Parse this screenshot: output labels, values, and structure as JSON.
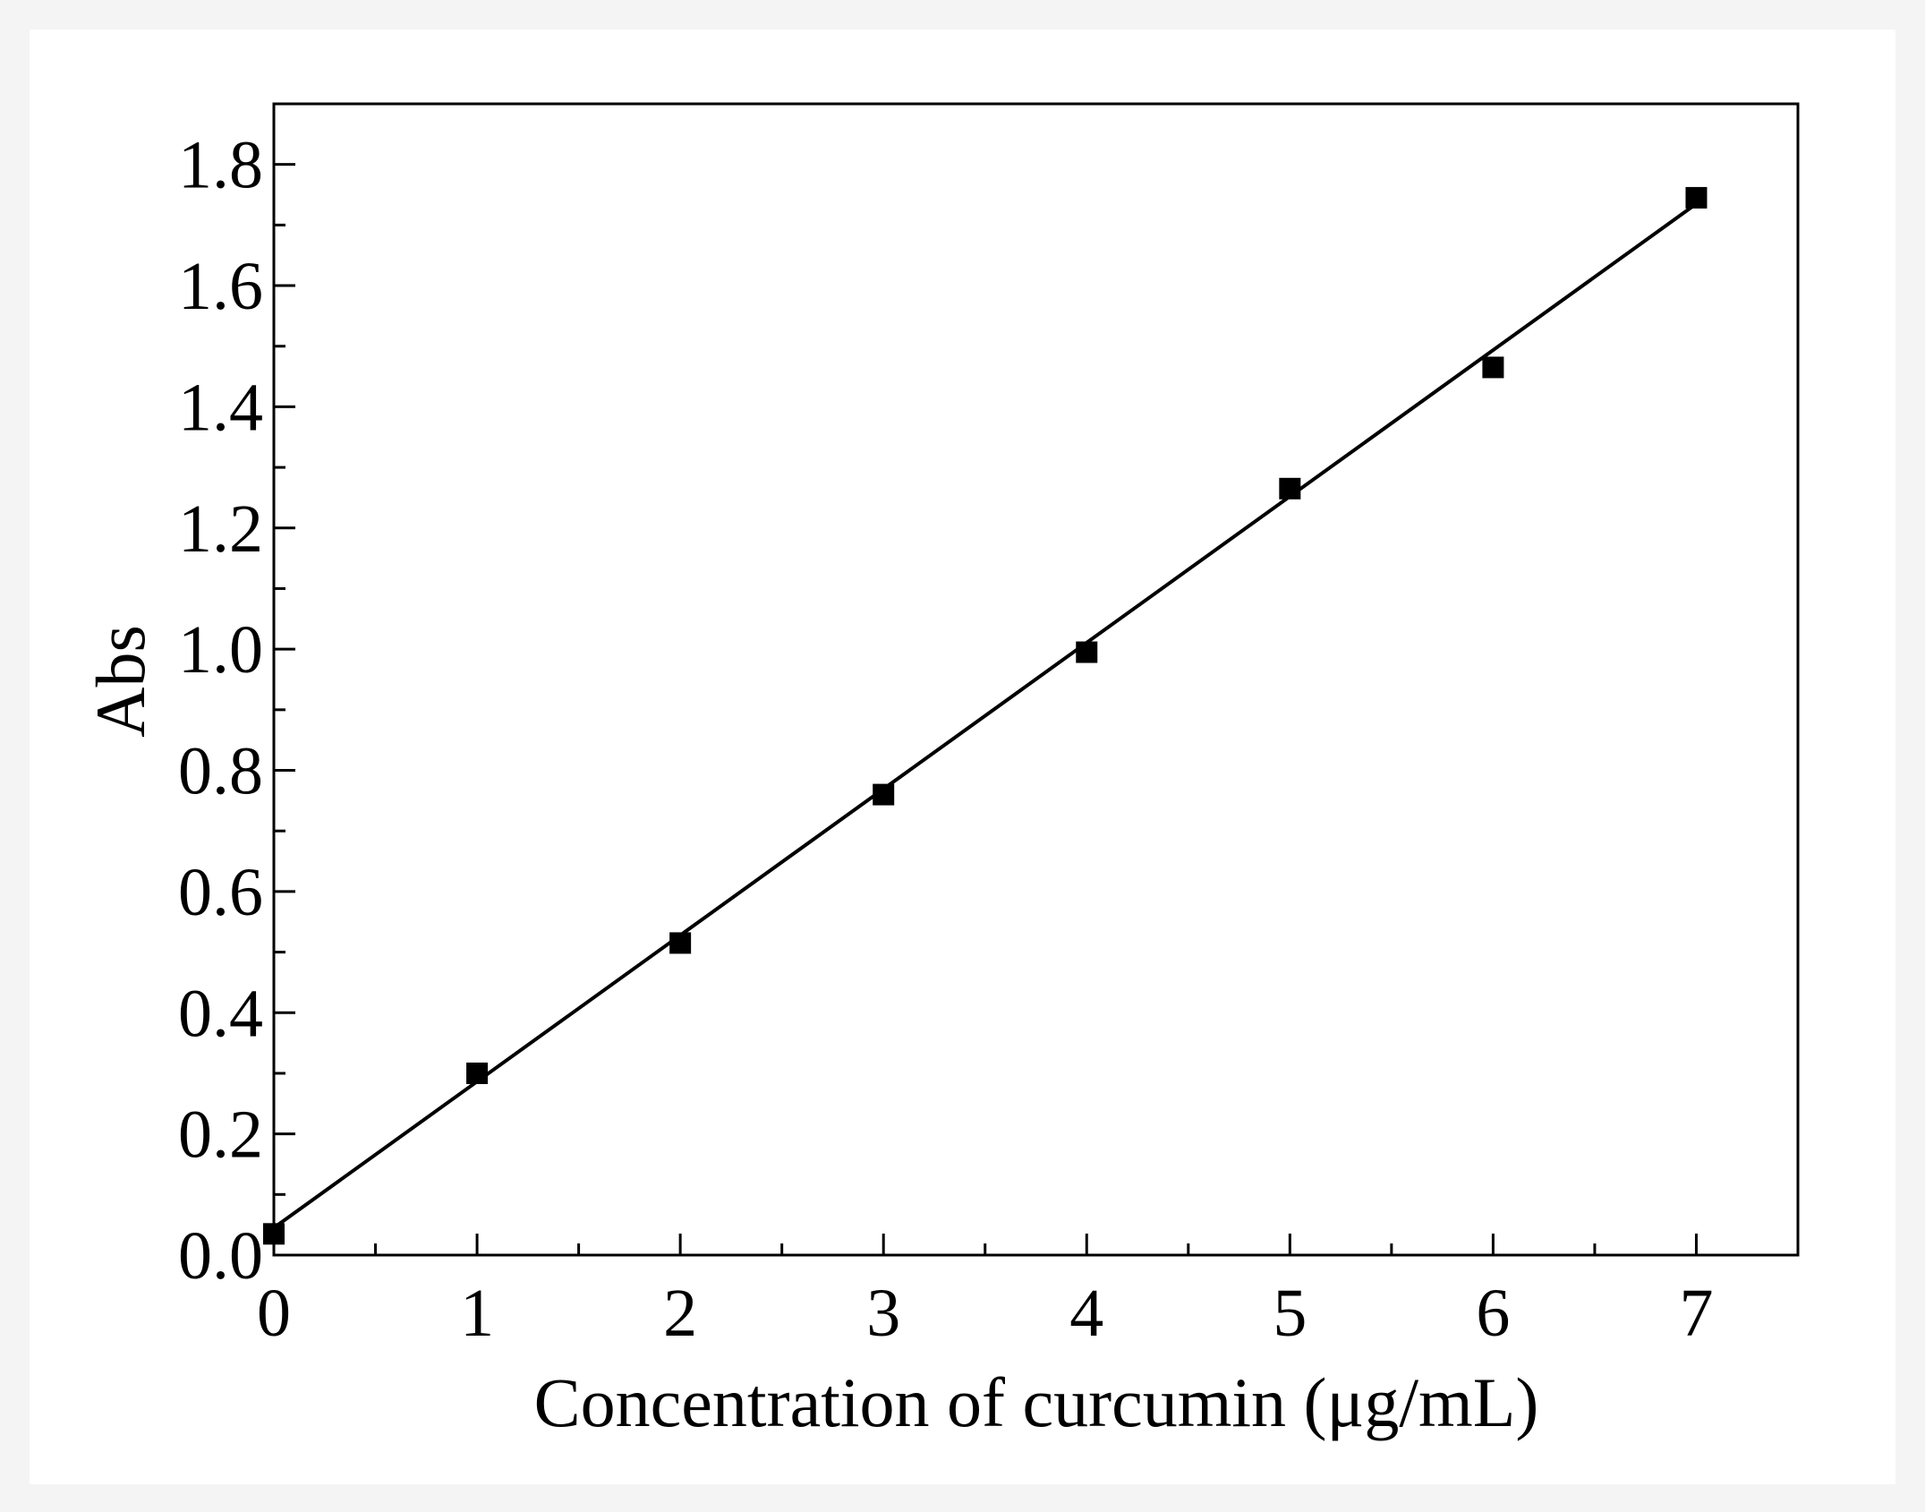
{
  "chart_data": {
    "type": "scatter",
    "title": "",
    "xlabel": "Concentration of curcumin (μg/mL)",
    "ylabel": "Abs",
    "xlim": [
      0,
      7.5
    ],
    "ylim": [
      0,
      1.9
    ],
    "x_ticks": [
      0,
      1,
      2,
      3,
      4,
      5,
      6,
      7
    ],
    "x_tick_labels": [
      "0",
      "1",
      "2",
      "3",
      "4",
      "5",
      "6",
      "7"
    ],
    "y_ticks": [
      0,
      0.2,
      0.4,
      0.6,
      0.8,
      1.0,
      1.2,
      1.4,
      1.6,
      1.8
    ],
    "y_tick_labels": [
      "0.0",
      "0.2",
      "0.4",
      "0.6",
      "0.8",
      "1.0",
      "1.2",
      "1.4",
      "1.6",
      "1.8"
    ],
    "grid": false,
    "legend": "none",
    "series": [
      {
        "marker": "square",
        "color": "#000000",
        "x": [
          0,
          1,
          2,
          3,
          4,
          5,
          6,
          7
        ],
        "y": [
          0.035,
          0.3,
          0.515,
          0.76,
          0.995,
          1.265,
          1.465,
          1.745
        ]
      }
    ],
    "fit_line": {
      "x": [
        0,
        7
      ],
      "y": [
        0.045,
        1.735
      ],
      "color": "#000000"
    }
  }
}
